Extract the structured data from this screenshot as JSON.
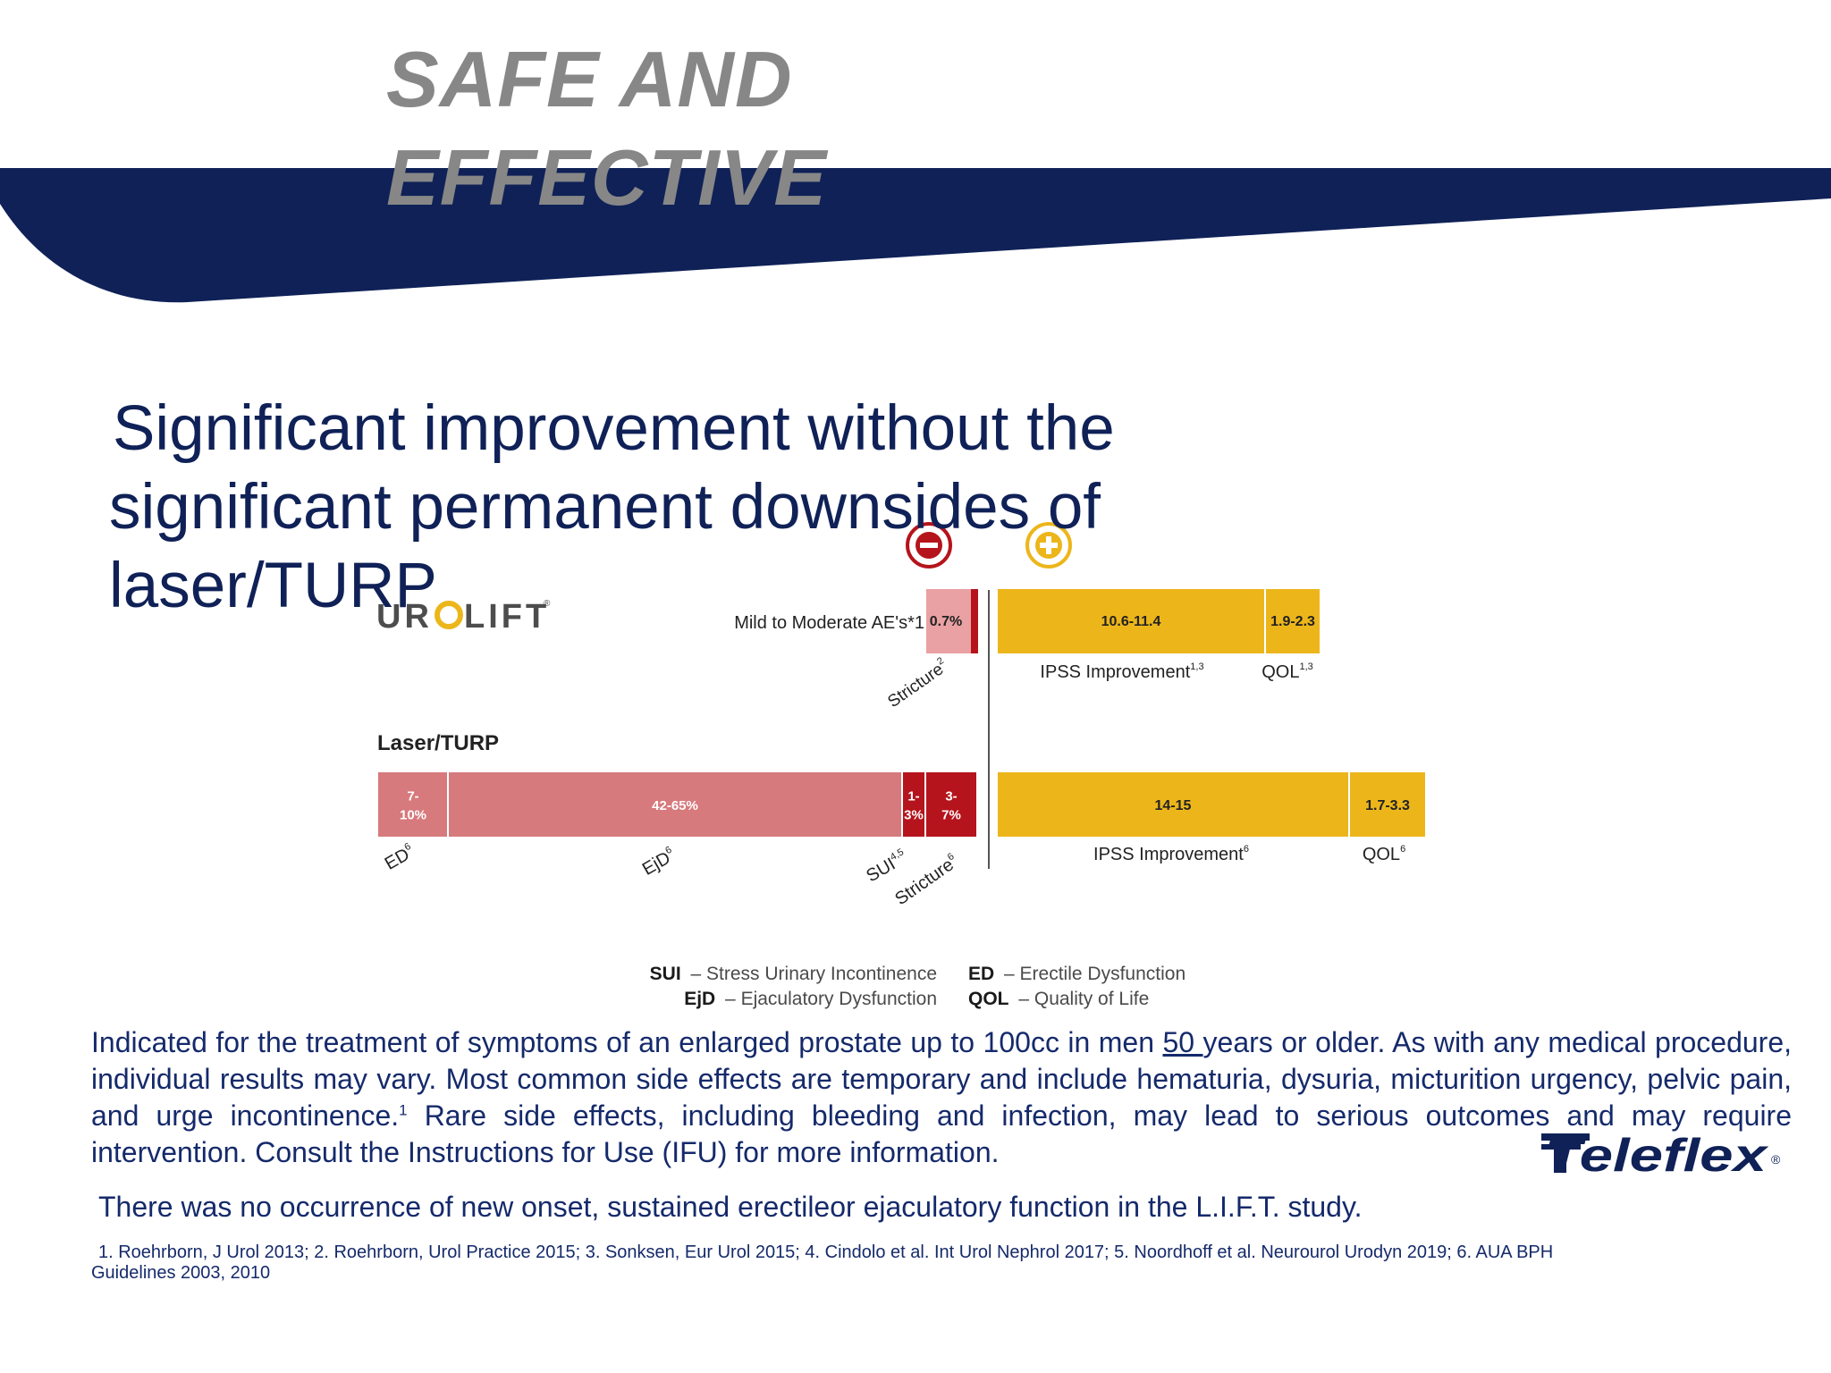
{
  "header": {
    "title_line1": "SAFE AND",
    "title_line2": "EFFECTIVE"
  },
  "headline": {
    "line1": "Significant improvement without the",
    "line2": "significant permanent  downsides of",
    "line3": "laser/TURP"
  },
  "colors": {
    "navy_band": "#0f2157",
    "title_grey": "#878787",
    "text_navy": "#152a6b",
    "bar_gold": "#ecb61b",
    "bar_pink": "#d77a7d",
    "bar_red": "#b5141c"
  },
  "icons": {
    "minus": "minus-circle-icon",
    "plus": "plus-circle-icon"
  },
  "chart_data": {
    "type": "bar",
    "orientation": "horizontal-diverging",
    "rows": [
      {
        "label": "UROLIFT",
        "label_mark": "®",
        "adverse_label": "Mild to Moderate AE's*1",
        "adverse_segments": [
          {
            "name": "Mild to Moderate AE's",
            "value_label": "0.7%",
            "color": "#b5141c"
          },
          {
            "name": "Stricture",
            "ref": "2",
            "value_label": "",
            "color": "#e9a1a3"
          }
        ],
        "benefit_segments": [
          {
            "name": "IPSS Improvement",
            "ref": "1,3",
            "value_label": "10.6-11.4",
            "color": "#ecb61b"
          },
          {
            "name": "QOL",
            "ref": "1,3",
            "value_label": "1.9-2.3",
            "color": "#ecb61b"
          }
        ]
      },
      {
        "label": "Laser/TURP",
        "adverse_segments": [
          {
            "name": "ED",
            "ref": "6",
            "value_label": "7-\n10%",
            "color": "#d77a7d"
          },
          {
            "name": "EjD",
            "ref": "6",
            "value_label": "42-65%",
            "color": "#d77a7d"
          },
          {
            "name": "SUI",
            "ref": "4,5",
            "value_label": "1-\n3%",
            "color": "#b5141c"
          },
          {
            "name": "Stricture",
            "ref": "6",
            "value_label": "3-\n7%",
            "color": "#b5141c"
          }
        ],
        "benefit_segments": [
          {
            "name": "IPSS Improvement",
            "ref": "6",
            "value_label": "14-15",
            "color": "#ecb61b"
          },
          {
            "name": "QOL",
            "ref": "6",
            "value_label": "1.7-3.3",
            "color": "#ecb61b"
          }
        ]
      }
    ],
    "legend": [
      {
        "abbr": "SUI",
        "text": "Stress Urinary Incontinence"
      },
      {
        "abbr": "ED",
        "text": "Erectile Dysfunction"
      },
      {
        "abbr": "EjD",
        "text": "Ejaculatory Dysfunction"
      },
      {
        "abbr": "QOL",
        "text": "Quality of Life"
      }
    ]
  },
  "body": {
    "p1_a": "Indicated for the treatment of symptoms of an enlarged prostate up to 100cc in men ",
    "p1_age": "50 ",
    "p1_b": " years or older. As with any medical procedure, individual results may vary. Most common side  effects are temporary and include hematuria, dysuria, micturition urgency, pelvic pain, and urge incontinence.",
    "p1_sup": "1",
    "p1_c": " Rare side effects, including bleeding and infection, may lead to serious outcomes and may require intervention. Consult the Instructions for Use (IFU) for more information.",
    "note": "There was no occurrence of new onset, sustained erectileor ejaculatory function in the L.I.F.T. study."
  },
  "references": {
    "line1": "1. Roehrborn, J Urol 2013; 2. Roehrborn, Urol Practice 2015; 3. Sonksen, Eur Urol 2015; 4. Cindolo et al. Int Urol Nephrol 2017; 5. Noordhoff et al. Neurourol Urodyn 2019; 6. AUA  BPH",
    "line2": "Guidelines 2003, 2010"
  },
  "brand": {
    "name": "Teleflex",
    "mark": "®"
  }
}
